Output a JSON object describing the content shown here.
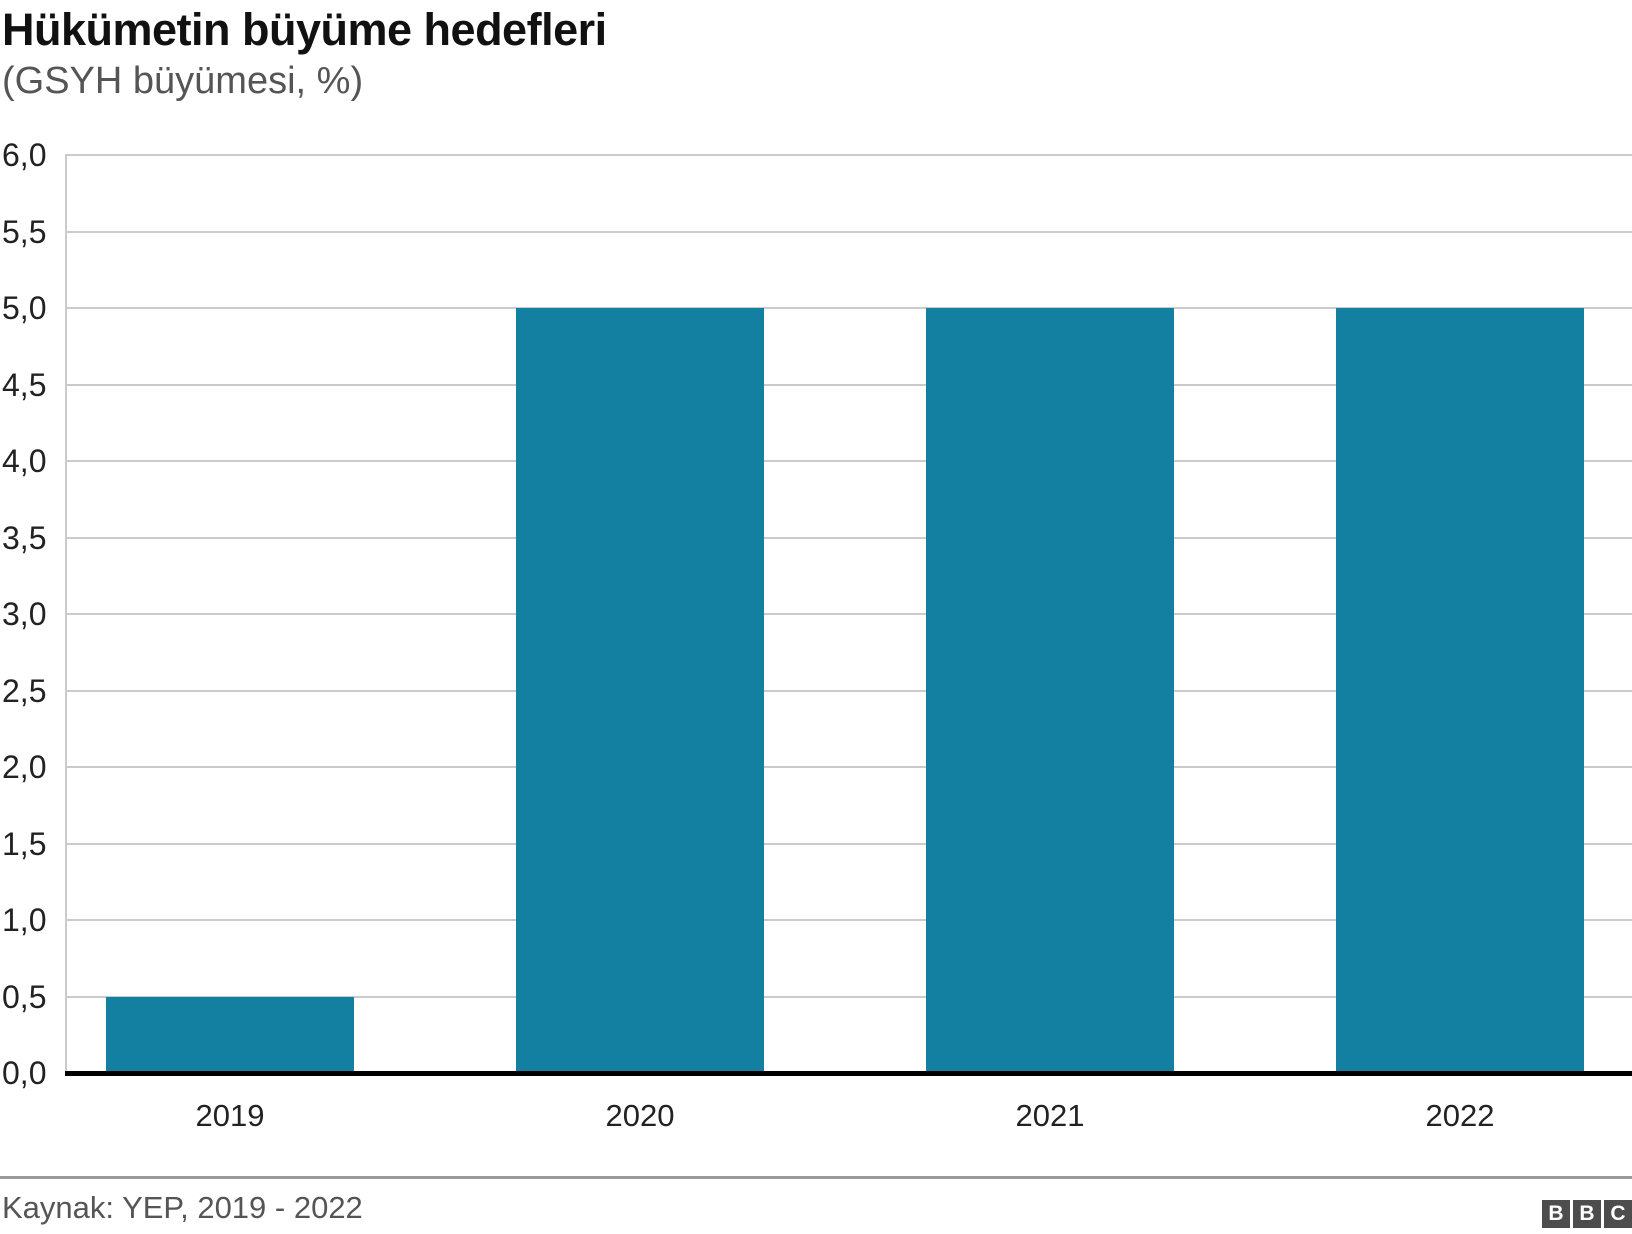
{
  "chart": {
    "title": "Hükümetin büyüme hedefleri",
    "subtitle": "(GSYH büyümesi, %)"
  },
  "chart_data": {
    "type": "bar",
    "categories": [
      "2019",
      "2020",
      "2021",
      "2022"
    ],
    "values": [
      0.5,
      5.0,
      5.0,
      5.0
    ],
    "title": "Hükümetin büyüme hedefleri",
    "subtitle": "(GSYH büyümesi, %)",
    "xlabel": "",
    "ylabel": "",
    "ylim": [
      0,
      6
    ],
    "ytick_step": 0.5,
    "ytick_labels": [
      "0,0",
      "0,5",
      "1,0",
      "1,5",
      "2,0",
      "2,5",
      "3,0",
      "3,5",
      "4,0",
      "4,5",
      "5,0",
      "5,5",
      "6,0"
    ],
    "grid": "horizontal-only",
    "legend": "none",
    "bar_color": "#1380A1",
    "gridline_color": "#cbcbcb",
    "baseline_color": "#000000",
    "tick_label_color": "#222222"
  },
  "footer": {
    "source": "Kaynak: YEP, 2019 - 2022",
    "logo_letters": [
      "B",
      "B",
      "C"
    ],
    "logo_block_color": "#4d4d4d",
    "logo_letter_color": "#ffffff"
  }
}
